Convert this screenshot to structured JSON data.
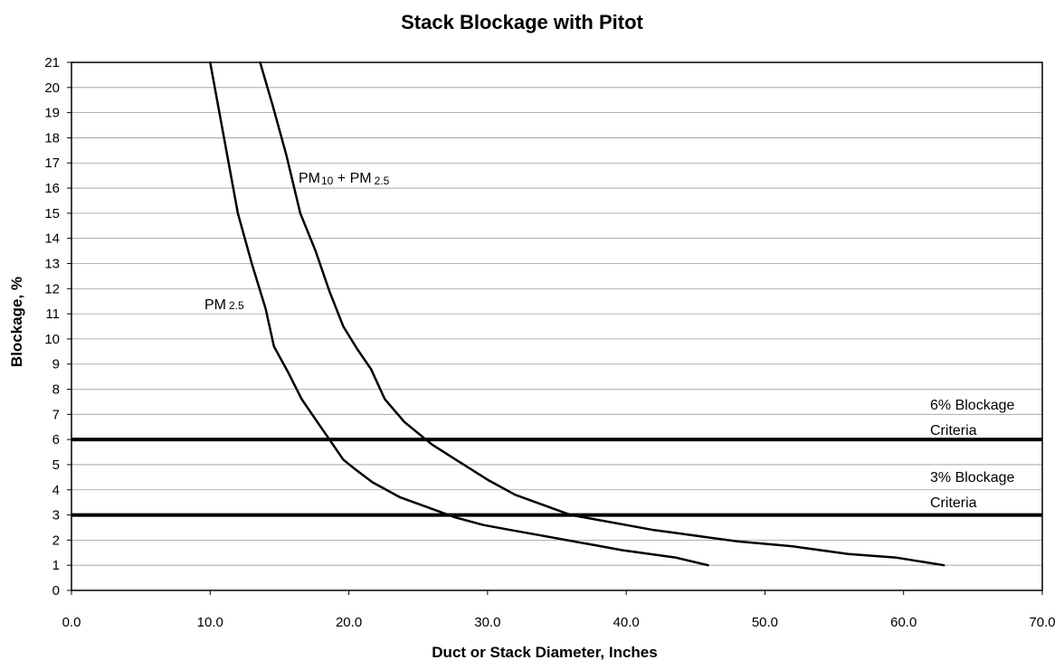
{
  "chart_data": {
    "type": "line",
    "title": "Stack Blockage with Pitot",
    "xlabel": "Duct or Stack Diameter, Inches",
    "ylabel": "Blockage, %",
    "xlim": [
      0,
      70
    ],
    "ylim": [
      0,
      21
    ],
    "x_ticks": [
      "0.0",
      "10.0",
      "20.0",
      "30.0",
      "40.0",
      "50.0",
      "60.0",
      "70.0"
    ],
    "y_ticks": [
      "0",
      "1",
      "2",
      "3",
      "4",
      "5",
      "6",
      "7",
      "8",
      "9",
      "10",
      "11",
      "12",
      "13",
      "14",
      "15",
      "16",
      "17",
      "18",
      "19",
      "20",
      "21"
    ],
    "grid": "horizontal",
    "series": [
      {
        "name": "PM 2.5",
        "label_main": "PM",
        "label_sub": "2.5",
        "x": [
          10.0,
          11.0,
          12.0,
          13.0,
          14.0,
          14.6,
          15.6,
          16.6,
          17.6,
          18.6,
          19.6,
          20.5,
          21.7,
          23.7,
          25.7,
          27.7,
          29.7,
          31.7,
          33.7,
          35.7,
          37.7,
          39.7,
          41.7,
          43.6,
          45.9
        ],
        "y": [
          21.0,
          18.0,
          15.0,
          13.0,
          11.2,
          9.7,
          8.7,
          7.6,
          6.8,
          6.0,
          5.2,
          4.8,
          4.3,
          3.7,
          3.3,
          2.9,
          2.6,
          2.4,
          2.2,
          2.0,
          1.8,
          1.6,
          1.45,
          1.3,
          1.0
        ]
      },
      {
        "name": "PM10 + PM2.5",
        "label_main1": "PM",
        "label_sub1": "10",
        "label_plus": " + PM",
        "label_sub2": "2.5",
        "x": [
          13.6,
          14.5,
          15.5,
          16.5,
          17.6,
          18.6,
          19.6,
          20.6,
          21.6,
          22.6,
          24.0,
          26.0,
          28.0,
          30.0,
          32.0,
          34.0,
          36.0,
          38.0,
          40.0,
          42.0,
          44.0,
          46.0,
          48.0,
          52.0,
          56.0,
          59.5,
          62.9
        ],
        "y": [
          21.0,
          19.3,
          17.3,
          15.0,
          13.5,
          11.9,
          10.5,
          9.6,
          8.8,
          7.6,
          6.7,
          5.8,
          5.1,
          4.4,
          3.8,
          3.4,
          3.0,
          2.8,
          2.6,
          2.4,
          2.25,
          2.1,
          1.95,
          1.75,
          1.45,
          1.3,
          1.0
        ]
      }
    ],
    "reference_lines": [
      {
        "y": 6,
        "label_line1": "6% Blockage",
        "label_line2": "Criteria"
      },
      {
        "y": 3,
        "label_line1": "3% Blockage",
        "label_line2": "Criteria"
      }
    ]
  }
}
